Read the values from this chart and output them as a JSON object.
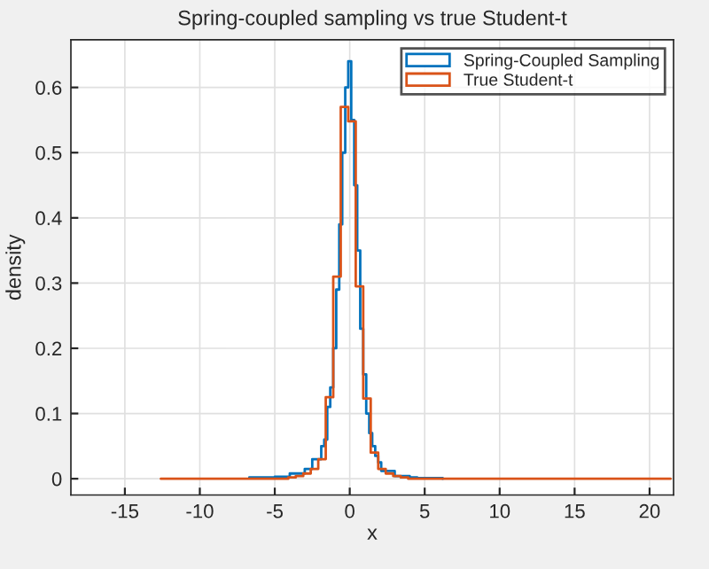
{
  "chart_data": {
    "type": "step",
    "title": "Spring-coupled sampling vs true Student-t",
    "xlabel": "x",
    "ylabel": "density",
    "series": [
      {
        "name": "Spring-Coupled Sampling",
        "color": "#0072bd",
        "x": [
          -6.7,
          -5,
          -4,
          -3,
          -2.5,
          -1.9,
          -1.7,
          -1.5,
          -1.3,
          -1.1,
          -0.9,
          -0.7,
          -0.5,
          -0.3,
          -0.1,
          0.1,
          0.3,
          0.5,
          0.7,
          0.9,
          1.1,
          1.3,
          1.5,
          1.7,
          1.9,
          2.1,
          3,
          4,
          4.5,
          6.2
        ],
        "values": [
          0.002,
          0.003,
          0.008,
          0.015,
          0.03,
          0.05,
          0.06,
          0.11,
          0.14,
          0.2,
          0.29,
          0.39,
          0.5,
          0.6,
          0.64,
          0.55,
          0.45,
          0.35,
          0.23,
          0.16,
          0.1,
          0.07,
          0.05,
          0.035,
          0.025,
          0.012,
          0.004,
          0.002,
          0.001,
          0
        ]
      },
      {
        "name": "True Student-t",
        "color": "#d95319",
        "x": [
          -12.6,
          -4.1,
          -3.6,
          -3.1,
          -2.6,
          -2.1,
          -1.6,
          -1.1,
          -0.6,
          -0.1,
          0.4,
          0.9,
          1.4,
          1.9,
          2.4,
          2.9,
          3.4,
          3.9,
          21.4
        ],
        "values": [
          0,
          0.002,
          0.004,
          0.008,
          0.015,
          0.03,
          0.125,
          0.31,
          0.57,
          0.548,
          0.295,
          0.123,
          0.04,
          0.015,
          0.008,
          0.004,
          0.002,
          0,
          0
        ]
      }
    ],
    "xlim": [
      -18.6,
      21.6
    ],
    "ylim": [
      -0.025,
      0.673
    ],
    "xticks": [
      -15,
      -10,
      -5,
      0,
      5,
      10,
      15,
      20
    ],
    "yticks": [
      0,
      0.1,
      0.2,
      0.3,
      0.4,
      0.5,
      0.6
    ],
    "grid": true,
    "legend": "top right"
  }
}
